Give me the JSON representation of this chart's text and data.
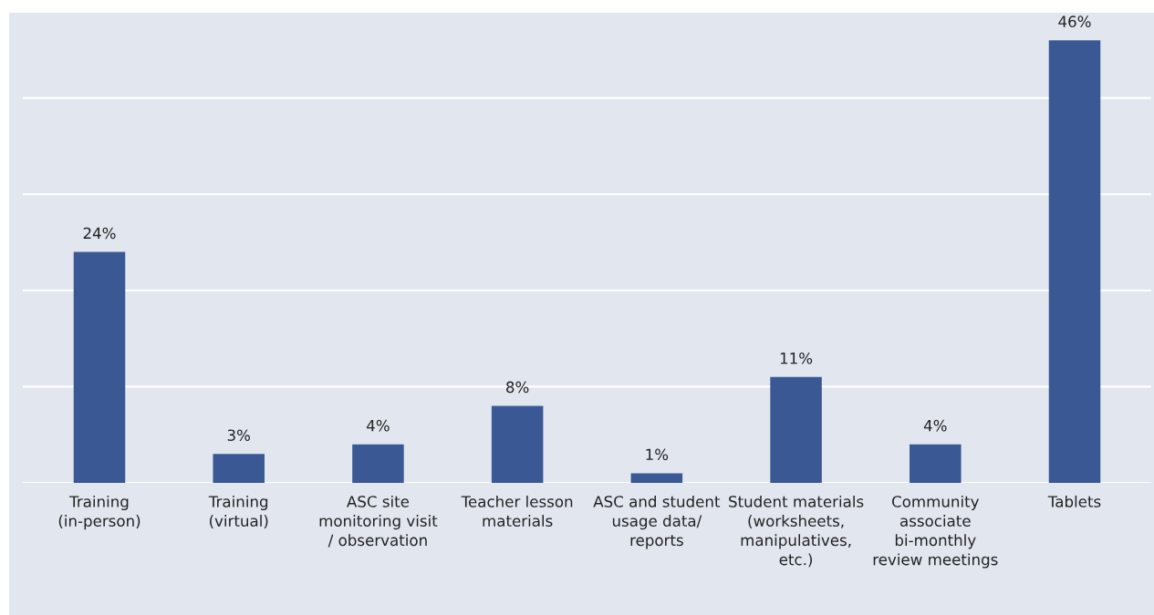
{
  "chart_data": {
    "type": "bar",
    "categories": [
      "Training\n(in-person)",
      "Training\n(virtual)",
      "ASC site\nmonitoring visit\n/ observation",
      "Teacher lesson\nmaterials",
      "ASC and student\nusage data/\nreports",
      "Student materials\n(worksheets,\nmanipulatives,\netc.)",
      "Community\nassociate\nbi-monthly\nreview meetings",
      "Tablets"
    ],
    "values": [
      24,
      3,
      4,
      8,
      1,
      11,
      4,
      46
    ],
    "value_labels": [
      "24%",
      "3%",
      "4%",
      "8%",
      "1%",
      "11%",
      "4%",
      "46%"
    ],
    "color": "#3a5894",
    "yticks": [
      {
        "value": 0,
        "label": null
      },
      {
        "value": 10,
        "label": null
      },
      {
        "value": 20,
        "label": null
      },
      {
        "value": 30,
        "label": null
      },
      {
        "value": 40,
        "label": null
      }
    ],
    "tick_labels": "x",
    "grid": "y"
  }
}
